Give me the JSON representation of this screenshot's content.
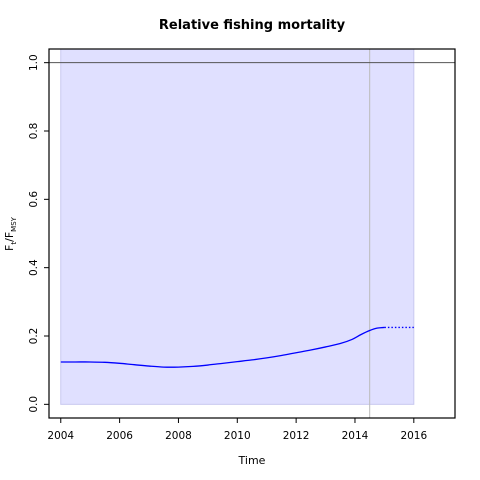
{
  "chart_data": {
    "type": "line",
    "title": "Relative fishing mortality",
    "xlabel": "Time",
    "ylabel": {
      "main": "F",
      "sub1": "t",
      "sep": "/F",
      "sub2": "MSY"
    },
    "xlim": [
      2003.6,
      2017.4
    ],
    "ylim": [
      -0.04,
      1.04
    ],
    "x_ticks": [
      2004,
      2006,
      2008,
      2010,
      2012,
      2014,
      2016
    ],
    "x_tick_labels": [
      "2004",
      "2006",
      "2008",
      "2010",
      "2012",
      "2014",
      "2016"
    ],
    "y_ticks": [
      0.0,
      0.2,
      0.4,
      0.6,
      0.8,
      1.0
    ],
    "y_tick_labels": [
      "0.0",
      "0.2",
      "0.4",
      "0.6",
      "0.8",
      "1.0"
    ],
    "reference_line_y": 1.0,
    "vertical_line_x": 2014.5,
    "confidence_band": {
      "x": [
        2004,
        2016
      ],
      "lower": 0.0,
      "upper": 1.04,
      "color": "#e0e0ff",
      "edge_color": "#c8c8f0"
    },
    "series": [
      {
        "style": "solid",
        "color": "#0000ff",
        "x": [
          2004,
          2004.5,
          2005,
          2005.5,
          2006,
          2006.5,
          2007,
          2007.5,
          2008,
          2008.5,
          2009,
          2009.5,
          2010,
          2010.5,
          2011,
          2011.5,
          2012,
          2012.5,
          2013,
          2013.5,
          2013.9,
          2014.2,
          2014.5,
          2014.75,
          2015
        ],
        "y": [
          0.124,
          0.124,
          0.124,
          0.123,
          0.12,
          0.116,
          0.112,
          0.109,
          0.109,
          0.111,
          0.115,
          0.12,
          0.125,
          0.13,
          0.136,
          0.143,
          0.151,
          0.159,
          0.168,
          0.178,
          0.19,
          0.204,
          0.216,
          0.223,
          0.225
        ]
      },
      {
        "style": "dotted",
        "color": "#0000ff",
        "x": [
          2015,
          2016
        ],
        "y": [
          0.225,
          0.225
        ]
      }
    ],
    "grid": false,
    "colors": {
      "axis": "#000000",
      "reference_line": "#555555",
      "vertical_line": "#bbbbbb"
    }
  }
}
